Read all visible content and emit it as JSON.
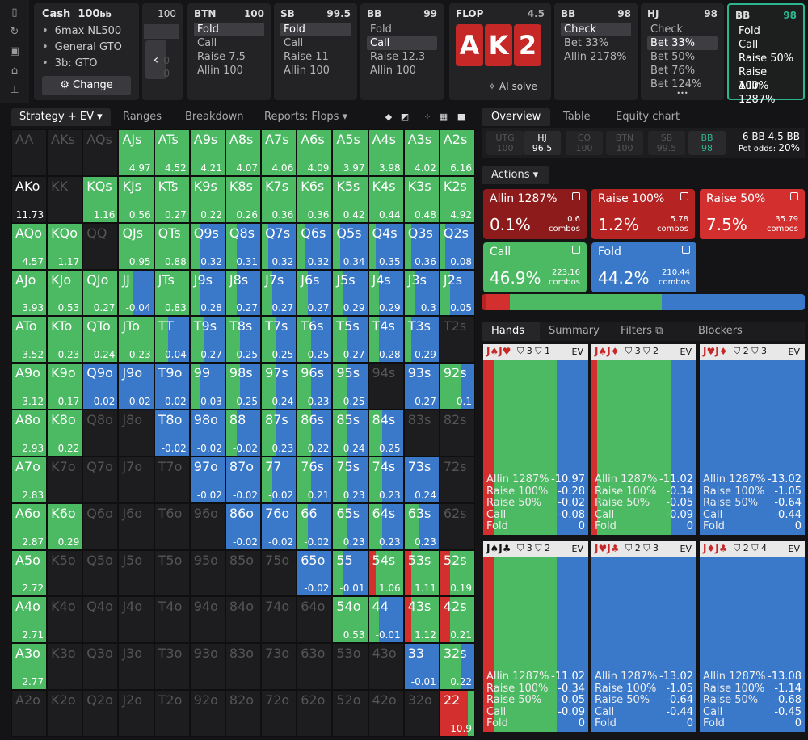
{
  "app": {
    "rail_icons": [
      "bookmark-icon",
      "history-icon",
      "save-icon",
      "gamepad-icon",
      "align-icon"
    ]
  },
  "game": {
    "title": "Cash",
    "stack": "100",
    "stack_unit": "bb",
    "options": [
      "6max NL500",
      "General GTO",
      "3b: GTO"
    ],
    "change_label": "Change",
    "prev_col_value": "100",
    "prev_col_zero1": "0",
    "prev_col_zero2": "0"
  },
  "columns": [
    {
      "pos": "BTN",
      "stack": "100",
      "items": [
        "Fold",
        "Call",
        "Raise 7.5",
        "Allin 100"
      ],
      "selected": 0
    },
    {
      "pos": "SB",
      "stack": "99.5",
      "items": [
        "Fold",
        "Call",
        "Raise 11",
        "Allin 100"
      ],
      "selected": 0
    },
    {
      "pos": "BB",
      "stack": "99",
      "items": [
        "Fold",
        "Call",
        "Raise 12.3",
        "Allin 100"
      ],
      "selected": 1
    },
    {
      "pos": "BB",
      "stack": "98",
      "items": [
        "Check",
        "Bet 33%",
        "Allin 2178%"
      ],
      "selected": 0
    },
    {
      "pos": "HJ",
      "stack": "98",
      "items": [
        "Check",
        "Bet 33%",
        "Bet 50%",
        "Bet 76%",
        "Bet 124%"
      ],
      "selected": 1,
      "more": "•••"
    },
    {
      "pos": "BB",
      "stack": "98",
      "items": [
        "Fold",
        "Call",
        "Raise 50%",
        "Raise 100%",
        "Allin 1287%"
      ],
      "selected": -1
    }
  ],
  "flop": {
    "label": "FLOP",
    "pot": "4.5",
    "cards": [
      "A",
      "K",
      "2"
    ],
    "ai_solve": "AI solve"
  },
  "toolbar": {
    "strategy": "Strategy + EV",
    "ranges": "Ranges",
    "breakdown": "Breakdown",
    "reports": "Reports: Flops"
  },
  "colors": {
    "allin": "#8e1b1b",
    "raise100": "#b52323",
    "raise50": "#d32f2f",
    "call": "#4cb963",
    "fold": "#3a78c9",
    "empty": "#1d1d1f"
  },
  "grid": [
    [
      [
        "AA",
        null,
        0,
        0,
        0
      ],
      [
        "AKs",
        null,
        0,
        0,
        0
      ],
      [
        "AQs",
        null,
        0,
        0,
        0
      ],
      [
        "AJs",
        "4.97",
        0,
        100,
        0
      ],
      [
        "ATs",
        "4.52",
        0,
        100,
        0
      ],
      [
        "A9s",
        "4.21",
        0,
        100,
        0
      ],
      [
        "A8s",
        "4.07",
        0,
        100,
        0
      ],
      [
        "A7s",
        "4.06",
        0,
        100,
        0
      ],
      [
        "A6s",
        "4.09",
        0,
        100,
        0
      ],
      [
        "A5s",
        "3.97",
        0,
        100,
        0
      ],
      [
        "A4s",
        "3.98",
        0,
        100,
        0
      ],
      [
        "A3s",
        "4.02",
        0,
        100,
        0
      ],
      [
        "A2s",
        "6.16",
        0,
        100,
        0
      ]
    ],
    [
      [
        "AKo",
        "11.73",
        0,
        0,
        0
      ],
      [
        "KK",
        null,
        0,
        0,
        0
      ],
      [
        "KQs",
        "1.16",
        0,
        100,
        0
      ],
      [
        "KJs",
        "0.56",
        0,
        100,
        0
      ],
      [
        "KTs",
        "0.27",
        0,
        100,
        0
      ],
      [
        "K9s",
        "0.22",
        0,
        100,
        0
      ],
      [
        "K8s",
        "0.26",
        0,
        100,
        0
      ],
      [
        "K7s",
        "0.36",
        0,
        100,
        0
      ],
      [
        "K6s",
        "0.36",
        0,
        100,
        0
      ],
      [
        "K5s",
        "0.42",
        0,
        100,
        0
      ],
      [
        "K4s",
        "0.44",
        0,
        100,
        0
      ],
      [
        "K3s",
        "0.48",
        0,
        100,
        0
      ],
      [
        "K2s",
        "4.92",
        0,
        100,
        0
      ]
    ],
    [
      [
        "AQo",
        "4.57",
        0,
        100,
        0
      ],
      [
        "KQo",
        "1.17",
        0,
        100,
        0
      ],
      [
        "QQ",
        null,
        0,
        0,
        0
      ],
      [
        "QJs",
        "0.95",
        0,
        100,
        0
      ],
      [
        "QTs",
        "0.88",
        0,
        100,
        0
      ],
      [
        "Q9s",
        "0.32",
        0,
        30,
        70
      ],
      [
        "Q8s",
        "0.31",
        0,
        30,
        70
      ],
      [
        "Q7s",
        "0.32",
        0,
        20,
        80
      ],
      [
        "Q6s",
        "0.32",
        0,
        20,
        80
      ],
      [
        "Q5s",
        "0.34",
        0,
        20,
        80
      ],
      [
        "Q4s",
        "0.35",
        0,
        20,
        80
      ],
      [
        "Q3s",
        "0.36",
        0,
        20,
        80
      ],
      [
        "Q2s",
        "0.08",
        0,
        15,
        85
      ]
    ],
    [
      [
        "AJo",
        "3.93",
        0,
        100,
        0
      ],
      [
        "KJo",
        "0.53",
        0,
        100,
        0
      ],
      [
        "QJo",
        "0.27",
        0,
        100,
        0
      ],
      [
        "JJ",
        "-0.04",
        0,
        40,
        60
      ],
      [
        "JTs",
        "0.83",
        0,
        100,
        0
      ],
      [
        "J9s",
        "0.28",
        0,
        30,
        70
      ],
      [
        "J8s",
        "0.27",
        0,
        30,
        70
      ],
      [
        "J7s",
        "0.27",
        0,
        30,
        70
      ],
      [
        "J6s",
        "0.27",
        0,
        30,
        70
      ],
      [
        "J5s",
        "0.29",
        0,
        30,
        70
      ],
      [
        "J4s",
        "0.29",
        0,
        30,
        70
      ],
      [
        "J3s",
        "0.3",
        0,
        30,
        70
      ],
      [
        "J2s",
        "0.05",
        0,
        30,
        70
      ]
    ],
    [
      [
        "ATo",
        "3.52",
        0,
        100,
        0
      ],
      [
        "KTo",
        "0.23",
        0,
        100,
        0
      ],
      [
        "QTo",
        "0.24",
        0,
        100,
        0
      ],
      [
        "JTo",
        "0.23",
        0,
        100,
        0
      ],
      [
        "TT",
        "-0.04",
        0,
        40,
        60
      ],
      [
        "T9s",
        "0.27",
        0,
        40,
        60
      ],
      [
        "T8s",
        "0.25",
        0,
        40,
        60
      ],
      [
        "T7s",
        "0.25",
        0,
        40,
        60
      ],
      [
        "T6s",
        "0.25",
        0,
        40,
        60
      ],
      [
        "T5s",
        "0.27",
        0,
        40,
        60
      ],
      [
        "T4s",
        "0.28",
        0,
        30,
        70
      ],
      [
        "T3s",
        "0.29",
        0,
        20,
        80
      ],
      [
        "T2s",
        null,
        0,
        0,
        0
      ]
    ],
    [
      [
        "A9o",
        "3.12",
        0,
        100,
        0
      ],
      [
        "K9o",
        "0.17",
        0,
        100,
        0
      ],
      [
        "Q9o",
        "-0.02",
        0,
        0,
        100
      ],
      [
        "J9o",
        "-0.02",
        0,
        0,
        100
      ],
      [
        "T9o",
        "-0.02",
        0,
        0,
        100
      ],
      [
        "99",
        "-0.03",
        0,
        30,
        70
      ],
      [
        "98s",
        "0.25",
        0,
        40,
        60
      ],
      [
        "97s",
        "0.24",
        0,
        40,
        60
      ],
      [
        "96s",
        "0.23",
        0,
        40,
        60
      ],
      [
        "95s",
        "0.25",
        0,
        40,
        60
      ],
      [
        "94s",
        null,
        0,
        0,
        0
      ],
      [
        "93s",
        "0.27",
        0,
        0,
        100
      ],
      [
        "92s",
        "0.1",
        0,
        60,
        40
      ]
    ],
    [
      [
        "A8o",
        "2.93",
        0,
        100,
        0
      ],
      [
        "K8o",
        "0.22",
        0,
        100,
        0
      ],
      [
        "Q8o",
        null,
        0,
        0,
        0
      ],
      [
        "J8o",
        null,
        0,
        0,
        0
      ],
      [
        "T8o",
        "-0.02",
        0,
        0,
        100
      ],
      [
        "98o",
        "-0.02",
        0,
        0,
        100
      ],
      [
        "88",
        "-0.02",
        0,
        30,
        70
      ],
      [
        "87s",
        "0.23",
        0,
        40,
        60
      ],
      [
        "86s",
        "0.22",
        0,
        40,
        60
      ],
      [
        "85s",
        "0.24",
        0,
        40,
        60
      ],
      [
        "84s",
        "0.25",
        0,
        40,
        60
      ],
      [
        "83s",
        null,
        0,
        0,
        0
      ],
      [
        "82s",
        null,
        0,
        0,
        0
      ]
    ],
    [
      [
        "A7o",
        "2.83",
        0,
        100,
        0
      ],
      [
        "K7o",
        null,
        0,
        0,
        0
      ],
      [
        "Q7o",
        null,
        0,
        0,
        0
      ],
      [
        "J7o",
        null,
        0,
        0,
        0
      ],
      [
        "T7o",
        null,
        0,
        0,
        0
      ],
      [
        "97o",
        "-0.02",
        0,
        0,
        100
      ],
      [
        "87o",
        "-0.02",
        0,
        0,
        100
      ],
      [
        "77",
        "-0.02",
        0,
        30,
        70
      ],
      [
        "76s",
        "0.21",
        0,
        40,
        60
      ],
      [
        "75s",
        "0.23",
        0,
        40,
        60
      ],
      [
        "74s",
        "0.23",
        0,
        40,
        60
      ],
      [
        "73s",
        "0.24",
        0,
        0,
        100
      ],
      [
        "72s",
        null,
        0,
        0,
        0
      ]
    ],
    [
      [
        "A6o",
        "2.87",
        0,
        100,
        0
      ],
      [
        "K6o",
        "0.29",
        0,
        100,
        0
      ],
      [
        "Q6o",
        null,
        0,
        0,
        0
      ],
      [
        "J6o",
        null,
        0,
        0,
        0
      ],
      [
        "T6o",
        null,
        0,
        0,
        0
      ],
      [
        "96o",
        null,
        0,
        0,
        0
      ],
      [
        "86o",
        "-0.02",
        0,
        0,
        100
      ],
      [
        "76o",
        "-0.02",
        0,
        0,
        100
      ],
      [
        "66",
        "-0.02",
        0,
        30,
        70
      ],
      [
        "65s",
        "0.23",
        0,
        40,
        60
      ],
      [
        "64s",
        "0.23",
        0,
        40,
        60
      ],
      [
        "63s",
        "0.23",
        0,
        40,
        60
      ],
      [
        "62s",
        null,
        0,
        0,
        0
      ]
    ],
    [
      [
        "A5o",
        "2.72",
        0,
        100,
        0
      ],
      [
        "K5o",
        null,
        0,
        0,
        0
      ],
      [
        "Q5o",
        null,
        0,
        0,
        0
      ],
      [
        "J5o",
        null,
        0,
        0,
        0
      ],
      [
        "T5o",
        null,
        0,
        0,
        0
      ],
      [
        "95o",
        null,
        0,
        0,
        0
      ],
      [
        "85o",
        null,
        0,
        0,
        0
      ],
      [
        "75o",
        null,
        0,
        0,
        0
      ],
      [
        "65o",
        "-0.02",
        0,
        0,
        100
      ],
      [
        "55",
        "-0.01",
        0,
        30,
        70
      ],
      [
        "54s",
        "1.06",
        20,
        80,
        0
      ],
      [
        "53s",
        "1.11",
        20,
        80,
        0
      ],
      [
        "52s",
        "0.19",
        30,
        70,
        0
      ]
    ],
    [
      [
        "A4o",
        "2.71",
        0,
        100,
        0
      ],
      [
        "K4o",
        null,
        0,
        0,
        0
      ],
      [
        "Q4o",
        null,
        0,
        0,
        0
      ],
      [
        "J4o",
        null,
        0,
        0,
        0
      ],
      [
        "T4o",
        null,
        0,
        0,
        0
      ],
      [
        "94o",
        null,
        0,
        0,
        0
      ],
      [
        "84o",
        null,
        0,
        0,
        0
      ],
      [
        "74o",
        null,
        0,
        0,
        0
      ],
      [
        "64o",
        null,
        0,
        0,
        0
      ],
      [
        "54o",
        "0.53",
        0,
        100,
        0
      ],
      [
        "44",
        "-0.01",
        0,
        30,
        70
      ],
      [
        "43s",
        "1.12",
        20,
        80,
        0
      ],
      [
        "42s",
        "0.21",
        30,
        70,
        0
      ]
    ],
    [
      [
        "A3o",
        "2.77",
        0,
        100,
        0
      ],
      [
        "K3o",
        null,
        0,
        0,
        0
      ],
      [
        "Q3o",
        null,
        0,
        0,
        0
      ],
      [
        "J3o",
        null,
        0,
        0,
        0
      ],
      [
        "T3o",
        null,
        0,
        0,
        0
      ],
      [
        "93o",
        null,
        0,
        0,
        0
      ],
      [
        "83o",
        null,
        0,
        0,
        0
      ],
      [
        "73o",
        null,
        0,
        0,
        0
      ],
      [
        "63o",
        null,
        0,
        0,
        0
      ],
      [
        "53o",
        null,
        0,
        0,
        0
      ],
      [
        "43o",
        null,
        0,
        0,
        0
      ],
      [
        "33",
        "-0.01",
        0,
        0,
        100
      ],
      [
        "32s",
        "0.22",
        0,
        60,
        40
      ]
    ],
    [
      [
        "A2o",
        null,
        0,
        0,
        0
      ],
      [
        "K2o",
        null,
        0,
        0,
        0
      ],
      [
        "Q2o",
        null,
        0,
        0,
        0
      ],
      [
        "J2o",
        null,
        0,
        0,
        0
      ],
      [
        "T2o",
        null,
        0,
        0,
        0
      ],
      [
        "92o",
        null,
        0,
        0,
        0
      ],
      [
        "82o",
        null,
        0,
        0,
        0
      ],
      [
        "72o",
        null,
        0,
        0,
        0
      ],
      [
        "62o",
        null,
        0,
        0,
        0
      ],
      [
        "52o",
        null,
        0,
        0,
        0
      ],
      [
        "42o",
        null,
        0,
        0,
        0
      ],
      [
        "32o",
        null,
        0,
        0,
        0
      ],
      [
        "22",
        "10.9",
        80,
        20,
        0
      ]
    ]
  ],
  "right_tabs": {
    "overview": "Overview",
    "table": "Table",
    "equity": "Equity chart"
  },
  "seats": [
    {
      "pos": "UTG",
      "stack": "100"
    },
    {
      "pos": "HJ",
      "stack": "96.5"
    },
    {
      "pos": "CO",
      "stack": "100"
    },
    {
      "pos": "BTN",
      "stack": "100"
    },
    {
      "pos": "SB",
      "stack": "99.5"
    },
    {
      "pos": "BB",
      "stack": "98"
    }
  ],
  "pot": {
    "bb": "6 BB",
    "bb2": "4.5 BB",
    "odds_label": "Pot odds:",
    "odds": "20%"
  },
  "actions_label": "Actions",
  "actions": [
    {
      "name": "Allin 1287%",
      "pct": "0.1%",
      "combos": "0.6",
      "color": "#8e1b1b"
    },
    {
      "name": "Raise 100%",
      "pct": "1.2%",
      "combos": "5.78",
      "color": "#b52323"
    },
    {
      "name": "Raise 50%",
      "pct": "7.5%",
      "combos": "35.79",
      "color": "#d32f2f"
    },
    {
      "name": "Call",
      "pct": "46.9%",
      "combos": "223.16",
      "color": "#4cb963"
    },
    {
      "name": "Fold",
      "pct": "44.2%",
      "combos": "210.44",
      "color": "#3a78c9"
    }
  ],
  "combos_word": "combos",
  "freq": [
    0.1,
    1.2,
    7.5,
    46.9,
    44.2
  ],
  "hand_tabs": {
    "hands": "Hands",
    "summary": "Summary",
    "filters": "Filters",
    "blockers": "Blockers"
  },
  "combos": [
    {
      "hand": "J♠J♥",
      "bl1": "3",
      "bl2": "1",
      "r": 10,
      "c": 60,
      "f": 30,
      "vals": [
        "-10.97",
        "-0.28",
        "-0.02",
        "-0.08",
        "0"
      ]
    },
    {
      "hand": "J♠J♦",
      "bl1": "3",
      "bl2": "2",
      "r": 5,
      "c": 70,
      "f": 25,
      "vals": [
        "-11.02",
        "-0.34",
        "-0.05",
        "-0.09",
        "0"
      ]
    },
    {
      "hand": "J♥J♦",
      "bl1": "2",
      "bl2": "3",
      "r": 0,
      "c": 0,
      "f": 100,
      "vals": [
        "-13.02",
        "-1.05",
        "-0.64",
        "-0.44",
        "0"
      ]
    },
    {
      "hand": "J♠J♣",
      "bl1": "3",
      "bl2": "2",
      "r": 10,
      "c": 60,
      "f": 30,
      "vals": [
        "-11.02",
        "-0.34",
        "-0.05",
        "-0.09",
        "0"
      ]
    },
    {
      "hand": "J♥J♣",
      "bl1": "2",
      "bl2": "3",
      "r": 0,
      "c": 0,
      "f": 100,
      "vals": [
        "-13.02",
        "-1.05",
        "-0.64",
        "-0.44",
        "0"
      ]
    },
    {
      "hand": "J♦J♣",
      "bl1": "2",
      "bl2": "4",
      "r": 0,
      "c": 0,
      "f": 100,
      "vals": [
        "-13.08",
        "-1.14",
        "-0.68",
        "-0.45",
        "0"
      ]
    }
  ],
  "combo_rows": [
    "Allin 1287%",
    "Raise 100%",
    "Raise 50%",
    "Call",
    "Fold"
  ],
  "ev_label": "EV"
}
